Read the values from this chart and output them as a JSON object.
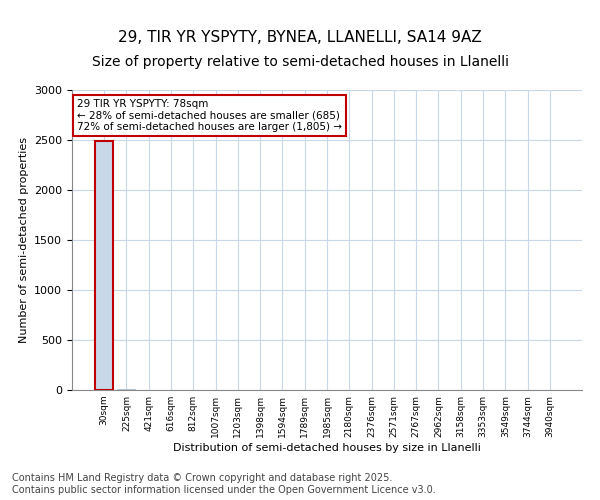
{
  "title1": "29, TIR YR YSPYTY, BYNEA, LLANELLI, SA14 9AZ",
  "title2": "Size of property relative to semi-detached houses in Llanelli",
  "xlabel": "Distribution of semi-detached houses by size in Llanelli",
  "ylabel": "Number of semi-detached properties",
  "categories": [
    "30sqm",
    "225sqm",
    "421sqm",
    "616sqm",
    "812sqm",
    "1007sqm",
    "1203sqm",
    "1398sqm",
    "1594sqm",
    "1789sqm",
    "1985sqm",
    "2180sqm",
    "2376sqm",
    "2571sqm",
    "2767sqm",
    "2962sqm",
    "3158sqm",
    "3353sqm",
    "3549sqm",
    "3744sqm",
    "3940sqm"
  ],
  "values": [
    2490,
    8,
    3,
    2,
    1,
    1,
    0,
    0,
    0,
    0,
    0,
    0,
    0,
    0,
    0,
    0,
    0,
    0,
    0,
    0,
    0
  ],
  "bar_color": "#c8d8e8",
  "bar_edge_color": "#a0b8cc",
  "highlight_bar_index": 0,
  "highlight_bar_edge_color": "#c00000",
  "annotation_text": "29 TIR YR YSPYTY: 78sqm\n← 28% of semi-detached houses are smaller (685)\n72% of semi-detached houses are larger (1,805) →",
  "annotation_box_color": "#ffffff",
  "annotation_box_edge_color": "#c00000",
  "ylim": [
    0,
    3000
  ],
  "yticks": [
    0,
    500,
    1000,
    1500,
    2000,
    2500,
    3000
  ],
  "background_color": "#ffffff",
  "grid_color": "#c8d8e8",
  "footer_text": "Contains HM Land Registry data © Crown copyright and database right 2025.\nContains public sector information licensed under the Open Government Licence v3.0.",
  "title1_fontsize": 11,
  "title2_fontsize": 10,
  "annotation_fontsize": 7.5,
  "footer_fontsize": 7
}
